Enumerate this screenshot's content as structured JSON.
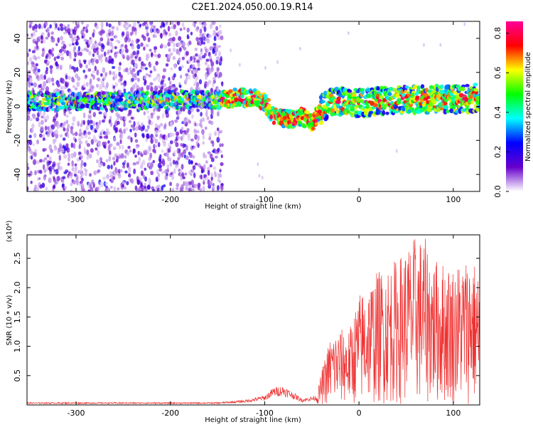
{
  "title": "C2E1.2024.050.00.19.R14",
  "chart_data": [
    {
      "type": "heatmap",
      "name": "spectrogram",
      "xlabel": "Height of straight line (km)",
      "ylabel": "Frequency (Hz)",
      "xlim": [
        -352,
        128
      ],
      "ylim": [
        -50,
        50
      ],
      "xticks": [
        -300,
        -200,
        -100,
        0,
        100
      ],
      "yticks": [
        -40,
        -20,
        0,
        20,
        40
      ],
      "colorbar": {
        "label": "Normalized spectral amplitude",
        "range": [
          0.0,
          0.86
        ],
        "ticks": [
          0.0,
          0.2,
          0.4,
          0.6,
          0.8
        ],
        "colors": [
          "#ffffff",
          "#6600cc",
          "#0000ff",
          "#00ffff",
          "#00ff00",
          "#ffff00",
          "#ff0000",
          "#ff0099"
        ]
      },
      "center_frequency_trace": {
        "x": [
          -352,
          -300,
          -250,
          -200,
          -150,
          -130,
          -110,
          -100,
          -90,
          -80,
          -70,
          -60,
          -50,
          -40,
          -30,
          -20,
          0,
          20,
          40,
          60,
          80,
          100,
          128
        ],
        "y": [
          3,
          3,
          3,
          4,
          4,
          5,
          5,
          2,
          -5,
          -7,
          -8,
          -6,
          -10,
          -2,
          2,
          3,
          2,
          3,
          4,
          4,
          4,
          4,
          5
        ]
      }
    },
    {
      "type": "line",
      "name": "snr",
      "xlabel": "Height of straight line (km)",
      "ylabel": "SNR (10 * v/v)",
      "yscale_label": "(x10⁴)",
      "xlim": [
        -352,
        128
      ],
      "ylim": [
        0,
        2.9
      ],
      "xticks": [
        -300,
        -200,
        -100,
        0,
        100
      ],
      "yticks": [
        0.5,
        1.0,
        1.5,
        2.0,
        2.5
      ],
      "ytick_labels": [
        "0.5",
        "1.0",
        "1.5",
        "2.0",
        "2.5"
      ],
      "color": "#ee3333",
      "envelope": {
        "x": [
          -352,
          -150,
          -120,
          -100,
          -90,
          -80,
          -60,
          -45,
          -40,
          -30,
          -20,
          -10,
          0,
          20,
          40,
          60,
          70,
          80,
          100,
          120,
          128
        ],
        "y": [
          0.04,
          0.04,
          0.08,
          0.15,
          0.28,
          0.3,
          0.1,
          0.15,
          0.55,
          1.2,
          1.3,
          1.3,
          1.9,
          2.3,
          2.5,
          2.9,
          2.85,
          2.5,
          2.4,
          2.6,
          2.2
        ]
      }
    }
  ]
}
